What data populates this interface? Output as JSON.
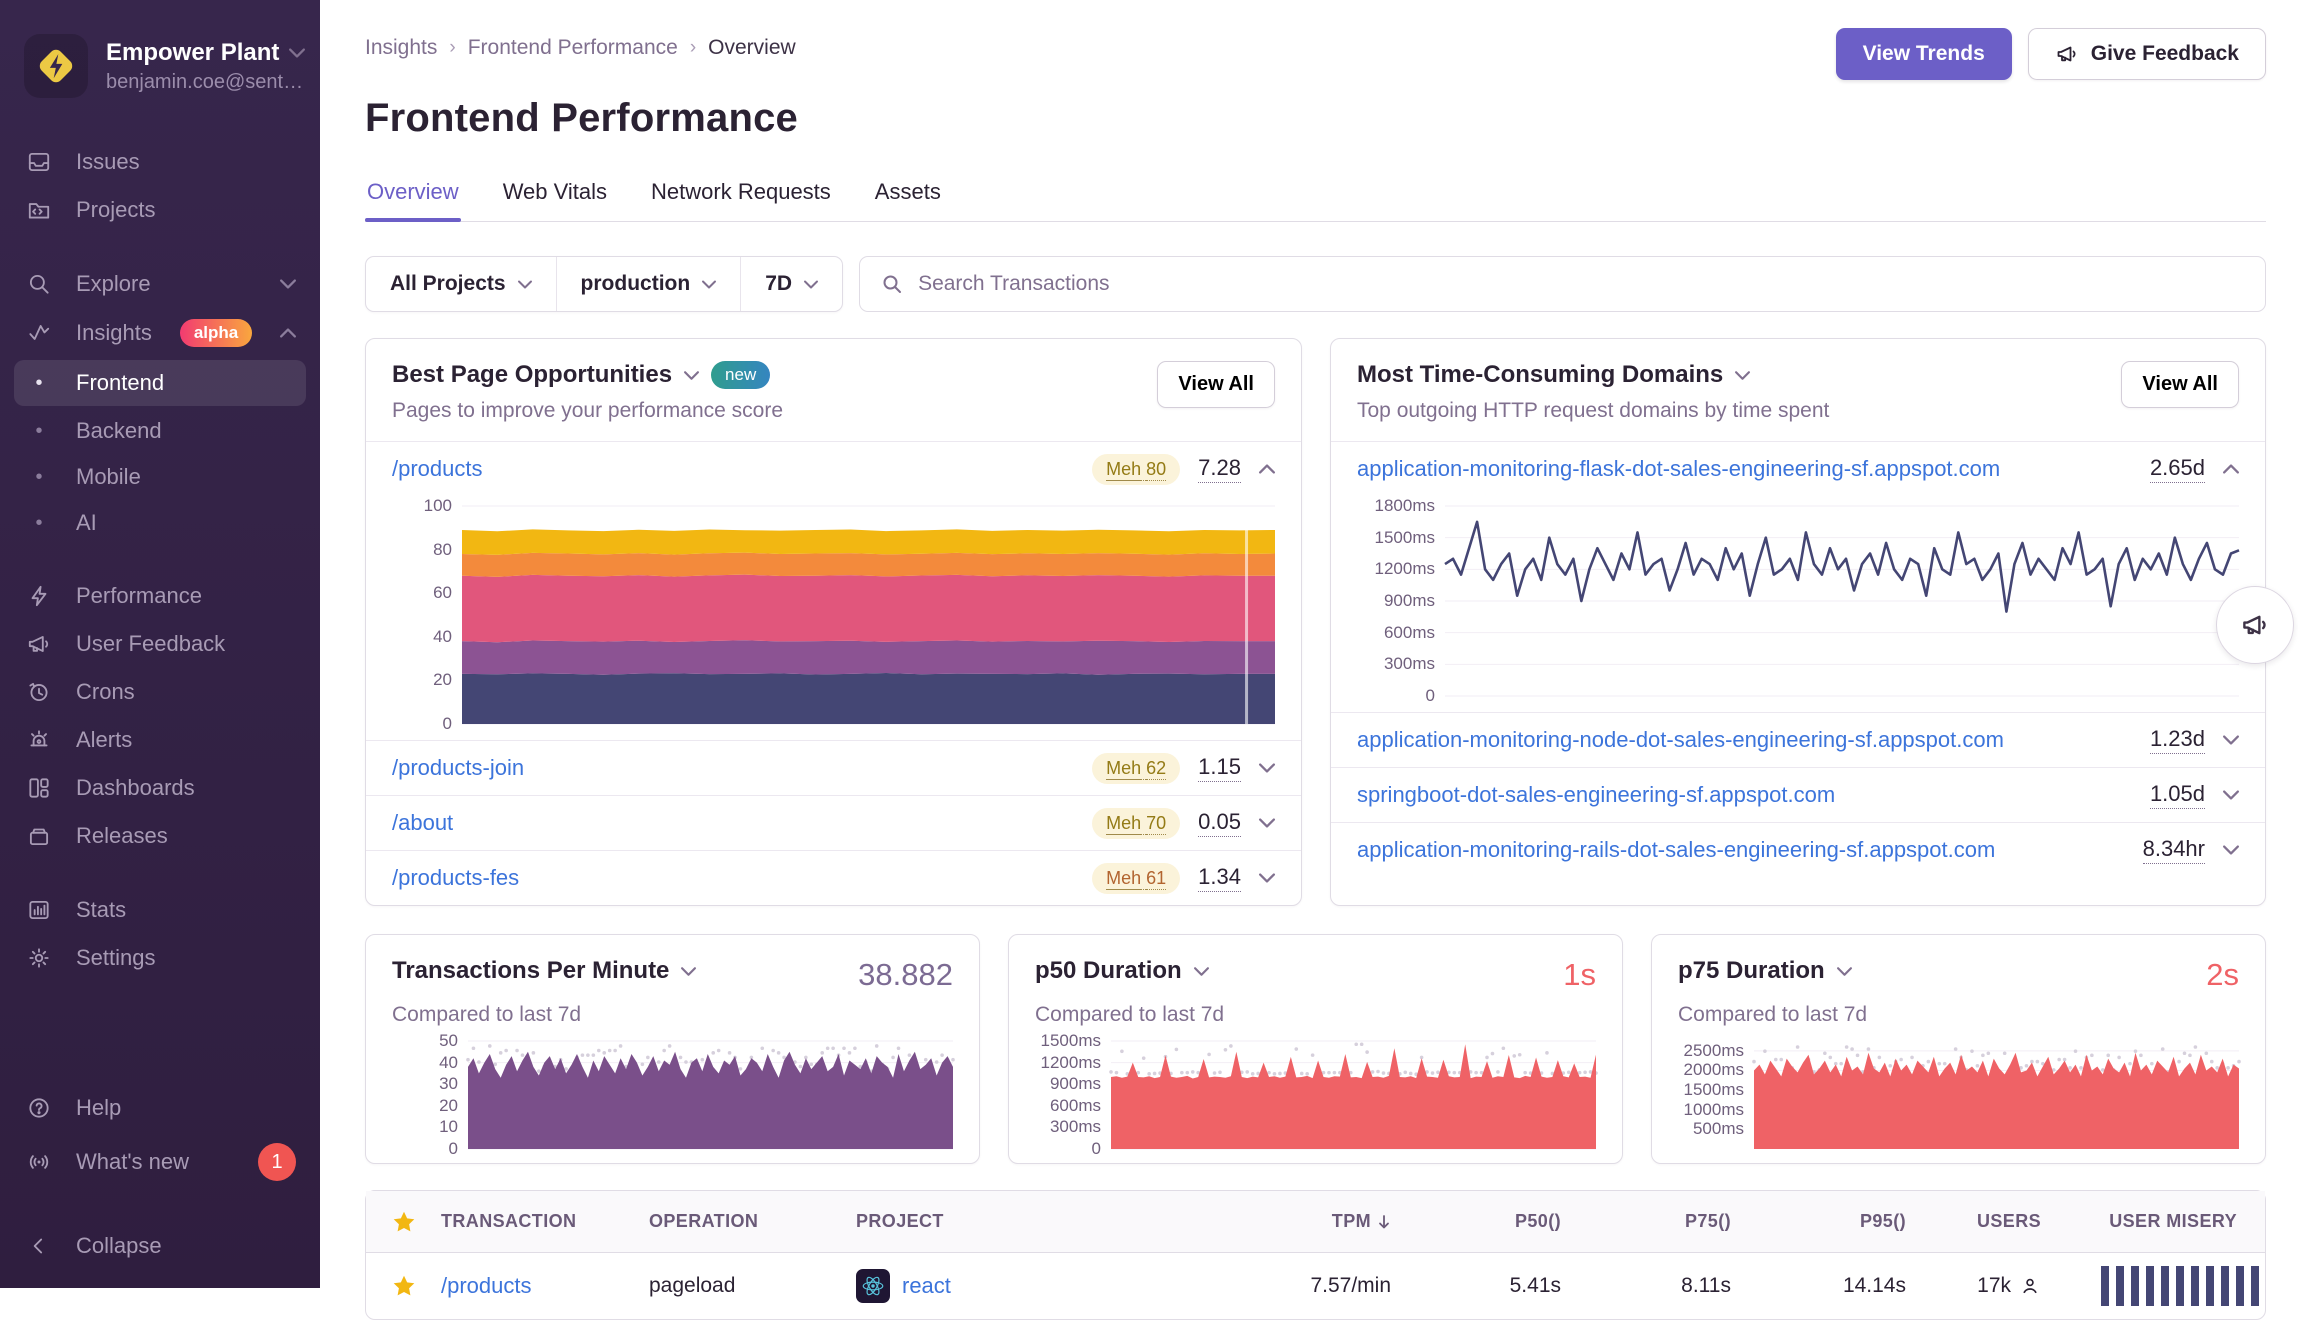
{
  "org": {
    "name": "Empower Plant",
    "email": "benjamin.coe@sent…"
  },
  "sidebar": {
    "issues": "Issues",
    "projects": "Projects",
    "explore": "Explore",
    "insights": "Insights",
    "alpha": "alpha",
    "frontend": "Frontend",
    "backend": "Backend",
    "mobile": "Mobile",
    "ai": "AI",
    "performance": "Performance",
    "user_feedback": "User Feedback",
    "crons": "Crons",
    "alerts": "Alerts",
    "dashboards": "Dashboards",
    "releases": "Releases",
    "stats": "Stats",
    "settings": "Settings",
    "help": "Help",
    "whats_new": "What's new",
    "whats_new_count": "1",
    "collapse": "Collapse"
  },
  "header": {
    "crumb1": "Insights",
    "crumb2": "Frontend Performance",
    "crumb3": "Overview",
    "title": "Frontend Performance",
    "view_trends": "View Trends",
    "give_feedback": "Give Feedback"
  },
  "tabs": {
    "t1": "Overview",
    "t2": "Web Vitals",
    "t3": "Network Requests",
    "t4": "Assets"
  },
  "filters": {
    "project": "All Projects",
    "env": "production",
    "period": "7D",
    "search_placeholder": "Search Transactions"
  },
  "opportunities": {
    "title": "Best Page Opportunities",
    "badge": "new",
    "subtitle": "Pages to improve your performance score",
    "view_all": "View All",
    "rows": [
      {
        "page": "/products",
        "score_label": "Meh",
        "score": "80",
        "value": "7.28",
        "score_color": "#947b16"
      },
      {
        "page": "/products-join",
        "score_label": "Meh",
        "score": "62",
        "value": "1.15",
        "score_color": "#947b16"
      },
      {
        "page": "/about",
        "score_label": "Meh",
        "score": "70",
        "value": "0.05",
        "score_color": "#947b16"
      },
      {
        "page": "/products-fes",
        "score_label": "Meh",
        "score": "61",
        "value": "1.34",
        "score_color": "#b2642f"
      }
    ]
  },
  "domains": {
    "title": "Most Time-Consuming Domains",
    "subtitle": "Top outgoing HTTP request domains by time spent",
    "view_all": "View All",
    "rows": [
      {
        "domain": "application-monitoring-flask-dot-sales-engineering-sf.appspot.com",
        "value": "2.65d"
      },
      {
        "domain": "application-monitoring-node-dot-sales-engineering-sf.appspot.com",
        "value": "1.23d"
      },
      {
        "domain": "springboot-dot-sales-engineering-sf.appspot.com",
        "value": "1.05d"
      },
      {
        "domain": "application-monitoring-rails-dot-sales-engineering-sf.appspot.com",
        "value": "8.34hr"
      }
    ]
  },
  "metrics": [
    {
      "title": "Transactions Per Minute",
      "subtitle": "Compared to last 7d",
      "value": "38.882",
      "value_color": "#7c6b93"
    },
    {
      "title": "p50 Duration",
      "subtitle": "Compared to last 7d",
      "value": "1s",
      "value_color": "#ef6266"
    },
    {
      "title": "p75 Duration",
      "subtitle": "Compared to last 7d",
      "value": "2s",
      "value_color": "#ef6266"
    }
  ],
  "table": {
    "headers": {
      "transaction": "TRANSACTION",
      "operation": "OPERATION",
      "project": "PROJECT",
      "tpm": "TPM",
      "p50": "P50()",
      "p75": "P75()",
      "p95": "P95()",
      "users": "USERS",
      "misery": "USER MISERY"
    },
    "row": {
      "transaction": "/products",
      "operation": "pageload",
      "project": "react",
      "tpm": "7.57/min",
      "p50": "5.41s",
      "p75": "8.11s",
      "p95": "14.14s",
      "users": "17k"
    }
  },
  "chart_data": {
    "opportunity": {
      "type": "area",
      "stacked": true,
      "ymax": 100,
      "marker_pct": 96.5,
      "ticks": [
        {
          "label": "100",
          "v": 100
        },
        {
          "label": "80",
          "v": 80
        },
        {
          "label": "60",
          "v": 60
        },
        {
          "label": "40",
          "v": 40
        },
        {
          "label": "20",
          "v": 20
        },
        {
          "label": "0",
          "v": 0
        }
      ],
      "bands": [
        {
          "name": "band-1",
          "color": "#444674",
          "top": [
            23,
            22.8,
            23.2,
            23,
            22.6,
            23.1,
            23.3,
            22.9,
            23,
            23.2,
            22.7,
            23,
            23.4,
            22.8,
            23.1,
            23,
            22.9,
            23.2,
            22.6,
            23,
            23.1,
            22.8,
            23,
            23
          ]
        },
        {
          "name": "band-2",
          "color": "#8c5393",
          "top": [
            38,
            37.5,
            38.3,
            38,
            37.8,
            38.2,
            37.6,
            38.1,
            38.4,
            37.9,
            38,
            38.2,
            37.7,
            38,
            38.3,
            37.8,
            38.1,
            37.9,
            38.2,
            38,
            37.6,
            38.1,
            38,
            38
          ]
        },
        {
          "name": "band-3",
          "color": "#e1567c",
          "top": [
            68,
            67.5,
            68.4,
            68,
            67.8,
            68.3,
            67.6,
            68.2,
            68.5,
            67.9,
            68,
            68.3,
            67.7,
            68.1,
            68.4,
            67.8,
            68.2,
            67.9,
            68.3,
            68,
            67.6,
            68.2,
            68,
            68
          ]
        },
        {
          "name": "band-4",
          "color": "#f38a3c",
          "top": [
            78,
            77.6,
            78.5,
            78.2,
            77.8,
            78.4,
            77.7,
            78.3,
            78.6,
            78,
            78.2,
            78.4,
            77.8,
            78.1,
            78.5,
            77.9,
            78.3,
            78,
            78.4,
            78.1,
            77.7,
            78.3,
            78,
            78.2
          ]
        },
        {
          "name": "band-5",
          "color": "#f2b712",
          "top": [
            89,
            88.4,
            89.3,
            88.8,
            88.5,
            89.1,
            88.6,
            89.2,
            88.9,
            88.7,
            89,
            89.2,
            88.5,
            88.8,
            89.3,
            88.6,
            89,
            88.7,
            89.1,
            88.8,
            88.4,
            89,
            88.8,
            89
          ]
        }
      ]
    },
    "domains": {
      "type": "line",
      "ymax": 1800,
      "color": "#444674",
      "ticks": [
        {
          "label": "1800ms",
          "v": 1800
        },
        {
          "label": "1500ms",
          "v": 1500
        },
        {
          "label": "1200ms",
          "v": 1200
        },
        {
          "label": "900ms",
          "v": 900
        },
        {
          "label": "600ms",
          "v": 600
        },
        {
          "label": "300ms",
          "v": 300
        },
        {
          "label": "0",
          "v": 0
        }
      ],
      "values": [
        1250,
        1300,
        1150,
        1400,
        1650,
        1200,
        1100,
        1250,
        1350,
        950,
        1200,
        1300,
        1100,
        1500,
        1250,
        1150,
        1300,
        900,
        1200,
        1400,
        1250,
        1100,
        1350,
        1200,
        1550,
        1150,
        1250,
        1300,
        1000,
        1200,
        1450,
        1150,
        1300,
        1250,
        1100,
        1400,
        1200,
        1350,
        950,
        1250,
        1500,
        1150,
        1200,
        1300,
        1100,
        1550,
        1250,
        1150,
        1400,
        1200,
        1300,
        1000,
        1250,
        1350,
        1150,
        1450,
        1200,
        1100,
        1300,
        1250,
        950,
        1400,
        1200,
        1150,
        1550,
        1250,
        1300,
        1100,
        1200,
        1350,
        800,
        1250,
        1450,
        1150,
        1300,
        1200,
        1100,
        1400,
        1250,
        1550,
        1150,
        1200,
        1300,
        850,
        1250,
        1400,
        1100,
        1300,
        1200,
        1350,
        1150,
        1500,
        1250,
        1100,
        1300,
        1450,
        1200,
        1150,
        1350,
        1380
      ]
    },
    "tpm": {
      "type": "area",
      "ymax": 50,
      "color": "#7a4f8a",
      "ghost": true,
      "ticks": [
        {
          "label": "50",
          "v": 50
        },
        {
          "label": "40",
          "v": 40
        },
        {
          "label": "30",
          "v": 30
        },
        {
          "label": "20",
          "v": 20
        },
        {
          "label": "10",
          "v": 10
        },
        {
          "label": "0",
          "v": 0
        }
      ],
      "values": [
        38,
        42,
        35,
        40,
        44,
        37,
        33,
        39,
        43,
        36,
        41,
        45,
        38,
        34,
        40,
        43,
        37,
        42,
        35,
        39,
        44,
        38,
        33,
        41,
        36,
        43,
        39,
        35,
        42,
        37,
        44,
        40,
        34,
        38,
        43,
        36,
        41,
        39,
        45,
        37,
        33,
        40,
        42,
        36,
        44,
        38,
        35,
        41,
        39,
        43,
        34,
        37,
        42,
        40,
        36,
        44,
        38,
        33,
        41,
        45,
        39,
        35,
        42,
        37,
        40,
        43,
        36,
        38,
        44,
        34,
        41,
        39,
        37,
        42,
        35,
        43,
        40,
        38,
        33,
        44,
        36,
        41,
        45,
        37,
        39,
        42,
        34,
        40,
        43,
        38
      ]
    },
    "p50": {
      "type": "area",
      "ymax": 1500,
      "color": "#ef6266",
      "ghost": true,
      "ticks": [
        {
          "label": "1500ms",
          "v": 1500
        },
        {
          "label": "1200ms",
          "v": 1200
        },
        {
          "label": "900ms",
          "v": 900
        },
        {
          "label": "600ms",
          "v": 600
        },
        {
          "label": "300ms",
          "v": 300
        },
        {
          "label": "0",
          "v": 0
        }
      ],
      "values": [
        1000,
        1010,
        990,
        1005,
        1200,
        1000,
        995,
        1010,
        985,
        1000,
        1300,
        1005,
        990,
        1000,
        1015,
        980,
        1000,
        1250,
        995,
        1005,
        1000,
        990,
        1010,
        1350,
        1000,
        985,
        1005,
        995,
        1200,
        1000,
        1010,
        990,
        1005,
        1280,
        995,
        1000,
        1015,
        985,
        1230,
        1000,
        990,
        1010,
        1005,
        1320,
        995,
        1000,
        985,
        1210,
        1000,
        1005,
        990,
        1015,
        1400,
        1000,
        995,
        1010,
        985,
        1260,
        1005,
        1000,
        990,
        1240,
        1010,
        995,
        1000,
        1455,
        985,
        1005,
        1000,
        1220,
        990,
        1010,
        1000,
        1305,
        995,
        985,
        1015,
        1000,
        1270,
        1005,
        990,
        1000,
        1235,
        1010,
        995,
        1190,
        1000,
        1005,
        990,
        1310
      ]
    },
    "p75": {
      "type": "area",
      "ymax": 2750,
      "color": "#ef6266",
      "ghost": true,
      "ticks": [
        {
          "label": "2500ms",
          "v": 2500
        },
        {
          "label": "2000ms",
          "v": 2000
        },
        {
          "label": "1500ms",
          "v": 1500
        },
        {
          "label": "1000ms",
          "v": 1000
        },
        {
          "label": "500ms",
          "v": 500
        }
      ],
      "values": [
        2000,
        2150,
        1900,
        2250,
        2050,
        1850,
        2300,
        2100,
        1950,
        2200,
        2400,
        1900,
        2050,
        2250,
        1950,
        2150,
        1850,
        2350,
        2000,
        2100,
        1900,
        2450,
        2050,
        1950,
        2200,
        1850,
        2300,
        2000,
        2150,
        1900,
        2250,
        2100,
        1950,
        2350,
        1850,
        2050,
        2200,
        1900,
        2400,
        2000,
        2100,
        1950,
        2250,
        1850,
        2300,
        2050,
        1900,
        2150,
        2450,
        1950,
        2000,
        2200,
        1850,
        2100,
        2350,
        1900,
        2050,
        2250,
        1950,
        2150,
        1850,
        2400,
        2000,
        2100,
        1900,
        2300,
        2050,
        1950,
        2200,
        1850,
        2450,
        2000,
        2150,
        1900,
        2250,
        2100,
        1950,
        2350,
        1850,
        2050,
        2200,
        1900,
        2400,
        2000,
        2100,
        1950,
        2300,
        1850,
        2150,
        2050
      ]
    }
  }
}
